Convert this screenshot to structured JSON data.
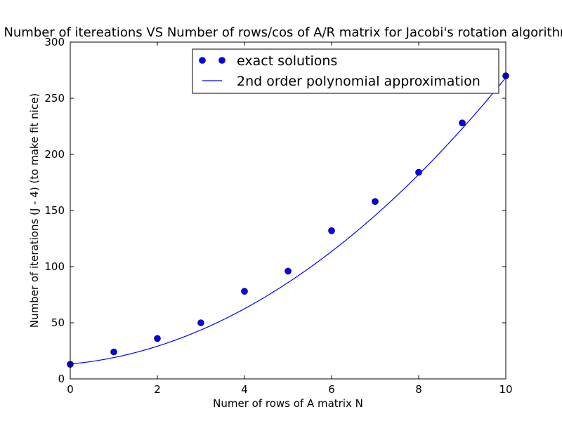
{
  "chart_data": {
    "type": "scatter",
    "title": "Number of itereations VS Number of rows/cos of A/R matrix for Jacobi's rotation algorithm",
    "xlabel": "Numer of rows of A matrix N",
    "ylabel": "Number of iterations (J - 4) (to make fit nice)",
    "xlim": [
      0,
      10
    ],
    "ylim": [
      0,
      300
    ],
    "xticks": [
      0,
      2,
      4,
      6,
      8,
      10
    ],
    "yticks": [
      0,
      50,
      100,
      150,
      200,
      250,
      300
    ],
    "grid": false,
    "legend_position": "top-right",
    "series": [
      {
        "name": "exact solutions",
        "kind": "markers",
        "color": "#0000ff",
        "x": [
          0,
          1,
          2,
          3,
          4,
          5,
          6,
          7,
          8,
          9,
          10
        ],
        "y": [
          13,
          24,
          36,
          50,
          78,
          96,
          132,
          158,
          184,
          228,
          270
        ]
      },
      {
        "name": "2nd order polynomial approximation",
        "kind": "line",
        "color": "#0000ff",
        "coefficients": [
          2.2,
          3.5,
          13.3
        ]
      }
    ]
  }
}
